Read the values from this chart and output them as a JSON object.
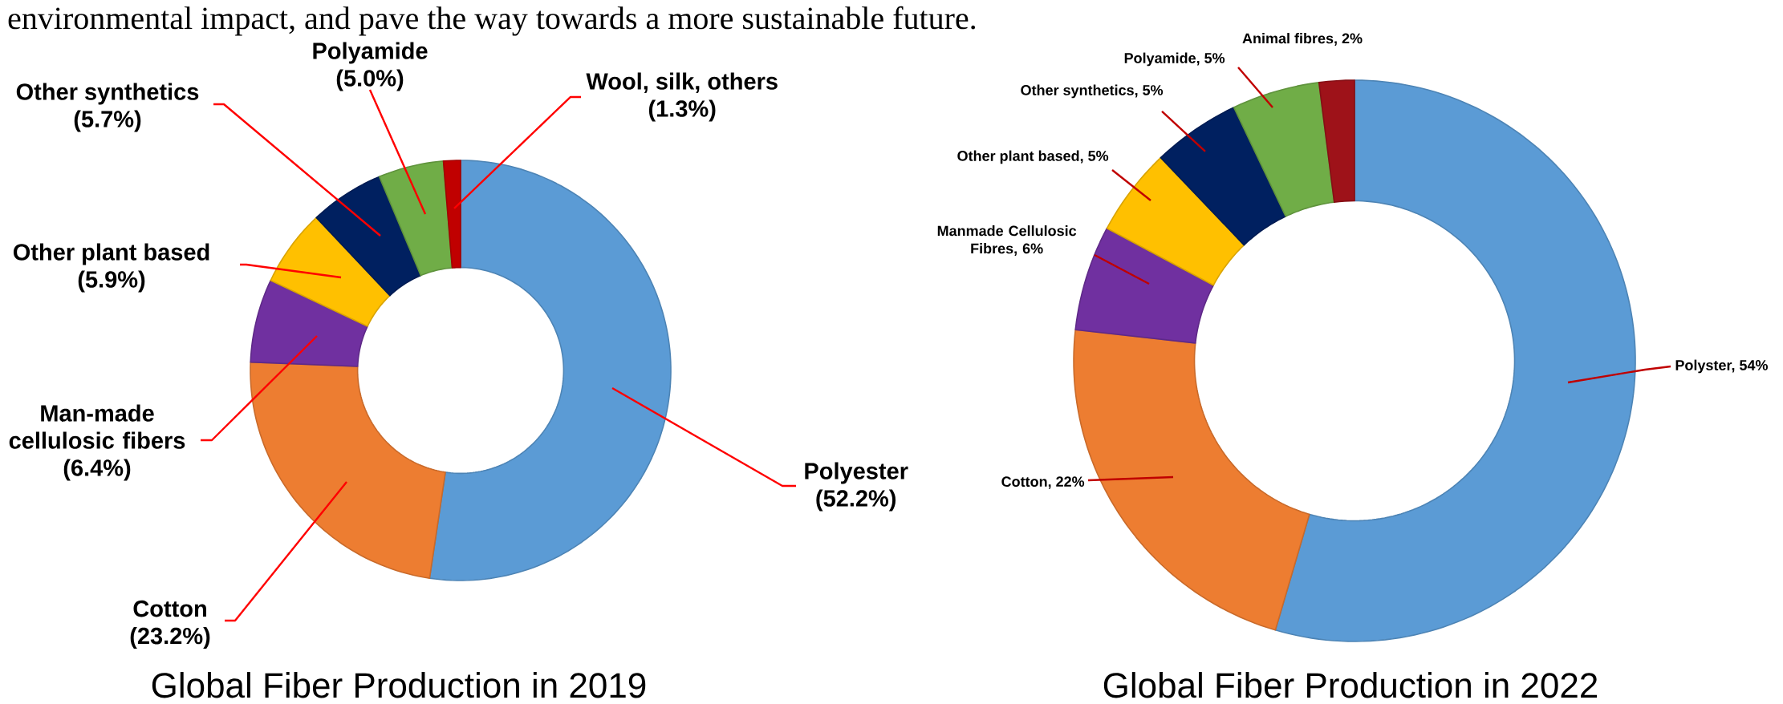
{
  "chart_data": [
    {
      "type": "donut",
      "title": "Global Fiber Production in 2019",
      "categories": [
        "Polyester",
        "Cotton",
        "Man-made cellulosic fibers",
        "Other plant based",
        "Other synthetics",
        "Polyamide",
        "Wool, silk, others"
      ],
      "values": [
        52.2,
        23.2,
        6.4,
        5.9,
        5.7,
        5.0,
        1.3
      ],
      "colors": [
        "#5b9bd5",
        "#ed7d31",
        "#7030a0",
        "#ffc000",
        "#002060",
        "#70ad47",
        "#c00000"
      ],
      "value_labels": [
        "(52.2%)",
        "(23.2%)",
        "(6.4%)",
        "(5.9%)",
        "(5.7%)",
        "(5.0%)",
        "(1.3%)"
      ],
      "annotations": [
        "environmental impact, and pave the way towards a more sustainable future."
      ]
    },
    {
      "type": "donut",
      "title": "Global Fiber Production in 2022",
      "categories": [
        "Polyster, 54%",
        "Cotton, 22%",
        "Manmade Cellulosic Fibres, 6%",
        "Other plant based, 5%",
        "Other synthetics, 5%",
        "Polyamide, 5%",
        "Animal fibres, 2%"
      ],
      "values": [
        54,
        22,
        6,
        5,
        5,
        5,
        2
      ],
      "colors": [
        "#5b9bd5",
        "#ed7d31",
        "#7030a0",
        "#ffc000",
        "#002060",
        "#70ad47",
        "#9e1219"
      ]
    }
  ]
}
